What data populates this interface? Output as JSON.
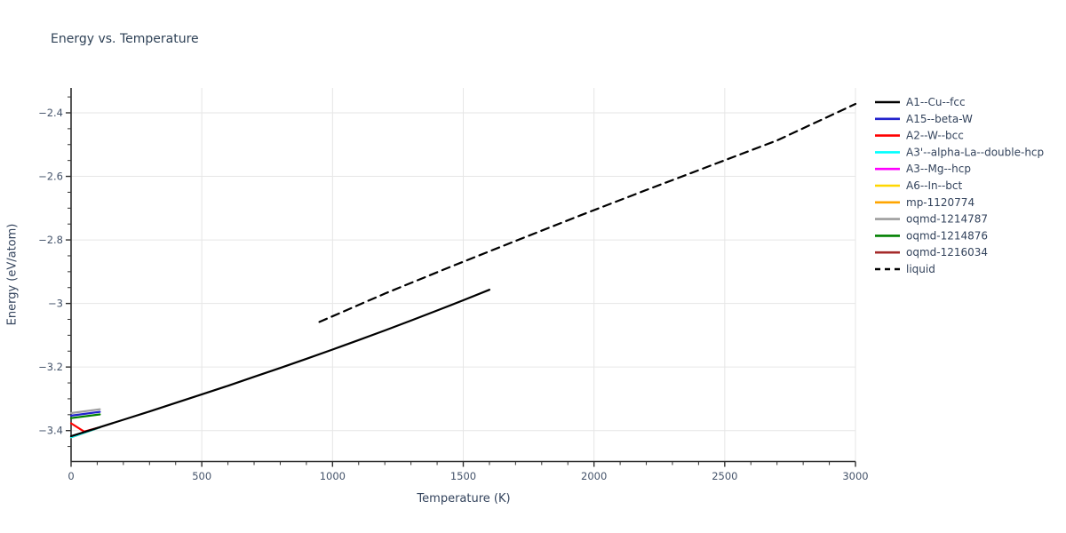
{
  "chart_data": {
    "type": "line",
    "title": "Energy vs. Temperature",
    "xlabel": "Temperature (K)",
    "ylabel": "Energy (eV/atom)",
    "xlim": [
      0,
      3000
    ],
    "ylim": [
      -3.49,
      -2.32
    ],
    "grid": true,
    "legend_position": "top-right-outside",
    "x_major_ticks": [
      0,
      500,
      1000,
      1500,
      2000,
      2500,
      3000
    ],
    "x_tick_labels": [
      "0",
      "500",
      "1000",
      "1500",
      "2000",
      "2500",
      "3000"
    ],
    "x_minor_step": 100,
    "y_major_ticks": [
      -2.4,
      -2.6,
      -2.8,
      -3.0,
      -3.2,
      -3.4
    ],
    "y_tick_labels": [
      "−2.4",
      "−2.6",
      "−2.8",
      "−3",
      "−3.2",
      "−3.4"
    ],
    "y_minor_step": 0.05,
    "series": [
      {
        "name": "A1--Cu--fcc",
        "color": "#000000",
        "dash": false,
        "z": 9,
        "points": [
          [
            0,
            -3.418
          ],
          [
            100,
            -3.392
          ],
          [
            200,
            -3.366
          ],
          [
            300,
            -3.34
          ],
          [
            400,
            -3.313
          ],
          [
            500,
            -3.286
          ],
          [
            600,
            -3.259
          ],
          [
            700,
            -3.231
          ],
          [
            800,
            -3.203
          ],
          [
            900,
            -3.174
          ],
          [
            1000,
            -3.145
          ],
          [
            1100,
            -3.115
          ],
          [
            1200,
            -3.085
          ],
          [
            1300,
            -3.054
          ],
          [
            1400,
            -3.022
          ],
          [
            1500,
            -2.99
          ],
          [
            1600,
            -2.957
          ]
        ]
      },
      {
        "name": "A15--beta-W",
        "color": "#2222cc",
        "dash": false,
        "z": 6,
        "points": [
          [
            0,
            -3.353
          ],
          [
            110,
            -3.341
          ]
        ]
      },
      {
        "name": "A2--W--bcc",
        "color": "#ff0000",
        "dash": false,
        "z": 8,
        "points": [
          [
            0,
            -3.377
          ],
          [
            50,
            -3.403
          ],
          [
            100,
            -3.392
          ]
        ]
      },
      {
        "name": "A3'--alpha-La--double-hcp",
        "color": "#00ffff",
        "dash": false,
        "z": 4,
        "points": [
          [
            0,
            -3.421
          ],
          [
            110,
            -3.39
          ]
        ]
      },
      {
        "name": "A3--Mg--hcp",
        "color": "#ff00ff",
        "dash": false,
        "z": 0,
        "points": [
          [
            0,
            -3.421
          ],
          [
            110,
            -3.39
          ]
        ]
      },
      {
        "name": "A6--In--bct",
        "color": "#ffd700",
        "dash": false,
        "z": 1,
        "points": [
          [
            0,
            -3.421
          ],
          [
            110,
            -3.39
          ]
        ]
      },
      {
        "name": "mp-1120774",
        "color": "#ffa500",
        "dash": false,
        "z": 2,
        "points": [
          [
            0,
            -3.421
          ],
          [
            110,
            -3.39
          ]
        ]
      },
      {
        "name": "oqmd-1214787",
        "color": "#9e9e9e",
        "dash": false,
        "z": 5,
        "points": [
          [
            0,
            -3.345
          ],
          [
            110,
            -3.333
          ]
        ]
      },
      {
        "name": "oqmd-1214876",
        "color": "#008000",
        "dash": false,
        "z": 7,
        "points": [
          [
            0,
            -3.361
          ],
          [
            110,
            -3.349
          ]
        ]
      },
      {
        "name": "oqmd-1216034",
        "color": "#a52a2a",
        "dash": false,
        "z": 3,
        "points": [
          [
            0,
            -3.421
          ],
          [
            110,
            -3.39
          ]
        ]
      },
      {
        "name": "liquid",
        "color": "#000000",
        "dash": true,
        "z": 10,
        "points": [
          [
            950,
            -3.058
          ],
          [
            1200,
            -2.969
          ],
          [
            1450,
            -2.885
          ],
          [
            1700,
            -2.803
          ],
          [
            1950,
            -2.722
          ],
          [
            2200,
            -2.643
          ],
          [
            2450,
            -2.565
          ],
          [
            2700,
            -2.487
          ],
          [
            3000,
            -2.372
          ]
        ]
      }
    ]
  },
  "colors": {
    "title_text": "#2e4156",
    "axis_text": "#33435c",
    "tick_text": "#44536a",
    "legend_text": "#33435c",
    "grid": "#e6e6e6",
    "axis_line": "#2f2f2f"
  }
}
